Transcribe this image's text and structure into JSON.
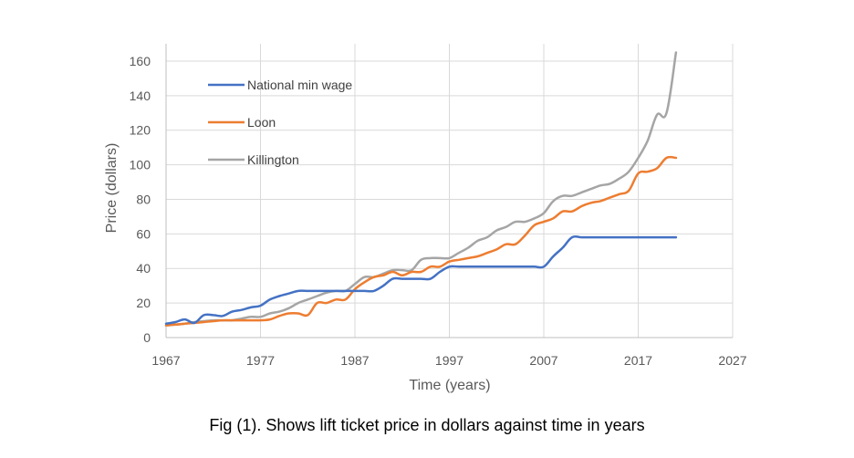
{
  "caption": "Fig (1). Shows lift ticket price in dollars against time in years",
  "chart_data": {
    "type": "line",
    "title": "",
    "xlabel": "Time (years)",
    "ylabel": "Price (dollars)",
    "xlim": [
      1967,
      2027
    ],
    "ylim": [
      0,
      170
    ],
    "x_ticks": [
      1967,
      1977,
      1987,
      1997,
      2007,
      2017,
      2027
    ],
    "y_ticks": [
      0,
      20,
      40,
      60,
      80,
      100,
      120,
      140,
      160
    ],
    "grid": true,
    "legend_position": "top-left",
    "series": [
      {
        "name": "National min wage",
        "color": "#4472C4",
        "x": [
          1967,
          1968,
          1969,
          1970,
          1971,
          1972,
          1973,
          1974,
          1975,
          1976,
          1977,
          1978,
          1979,
          1980,
          1981,
          1982,
          1983,
          1984,
          1985,
          1986,
          1987,
          1988,
          1989,
          1990,
          1991,
          1992,
          1993,
          1994,
          1995,
          1996,
          1997,
          1998,
          1999,
          2000,
          2001,
          2002,
          2003,
          2004,
          2005,
          2006,
          2007,
          2008,
          2009,
          2010,
          2011,
          2012,
          2013,
          2014,
          2015,
          2016,
          2017,
          2018,
          2019,
          2020,
          2021
        ],
        "values": [
          8,
          9,
          10.5,
          8.5,
          13,
          13,
          12.5,
          15,
          16,
          17.5,
          18.5,
          22,
          24,
          25.5,
          27,
          27,
          27,
          27,
          27,
          27,
          27,
          27,
          27,
          30,
          34,
          34,
          34,
          34,
          34,
          38,
          41,
          41,
          41,
          41,
          41,
          41,
          41,
          41,
          41,
          41,
          41,
          47,
          52,
          58,
          58,
          58,
          58,
          58,
          58,
          58,
          58,
          58,
          58,
          58,
          58
        ]
      },
      {
        "name": "Loon",
        "color": "#ED7D31",
        "x": [
          1967,
          1968,
          1969,
          1970,
          1971,
          1972,
          1973,
          1974,
          1975,
          1976,
          1977,
          1978,
          1979,
          1980,
          1981,
          1982,
          1983,
          1984,
          1985,
          1986,
          1987,
          1988,
          1989,
          1990,
          1991,
          1992,
          1993,
          1994,
          1995,
          1996,
          1997,
          1998,
          1999,
          2000,
          2001,
          2002,
          2003,
          2004,
          2005,
          2006,
          2007,
          2008,
          2009,
          2010,
          2011,
          2012,
          2013,
          2014,
          2015,
          2016,
          2017,
          2018,
          2019,
          2020,
          2021
        ],
        "values": [
          7,
          7.5,
          8,
          8.5,
          9,
          9.5,
          10,
          10,
          10,
          10,
          10,
          10.5,
          12.5,
          14,
          14,
          13,
          20,
          20,
          22,
          22,
          28,
          32,
          35,
          36,
          38,
          36,
          38,
          38,
          41,
          41,
          44,
          45,
          46,
          47,
          49,
          51,
          54,
          54,
          59,
          65,
          67,
          69,
          73,
          73,
          76,
          78,
          79,
          81,
          83,
          85,
          95,
          96,
          98,
          104,
          104
        ]
      },
      {
        "name": "Killington",
        "color": "#A5A5A5",
        "x": [
          1967,
          1968,
          1969,
          1970,
          1971,
          1972,
          1973,
          1974,
          1975,
          1976,
          1977,
          1978,
          1979,
          1980,
          1981,
          1982,
          1983,
          1984,
          1985,
          1986,
          1987,
          1988,
          1989,
          1990,
          1991,
          1992,
          1993,
          1994,
          1995,
          1996,
          1997,
          1998,
          1999,
          2000,
          2001,
          2002,
          2003,
          2004,
          2005,
          2006,
          2007,
          2008,
          2009,
          2010,
          2011,
          2012,
          2013,
          2014,
          2015,
          2016,
          2017,
          2018,
          2019,
          2020,
          2021
        ],
        "values": [
          7,
          7.5,
          8,
          9,
          9.5,
          10,
          10,
          10,
          11,
          12,
          12,
          14,
          15,
          17,
          20,
          22,
          24,
          26,
          27,
          27,
          31,
          35,
          35,
          37,
          39,
          39,
          39,
          45,
          46,
          46,
          46,
          49,
          52,
          56,
          58,
          62,
          64,
          67,
          67,
          69,
          72,
          79,
          82,
          82,
          84,
          86,
          88,
          89,
          92,
          96,
          104,
          114,
          129,
          130,
          165
        ]
      }
    ]
  }
}
